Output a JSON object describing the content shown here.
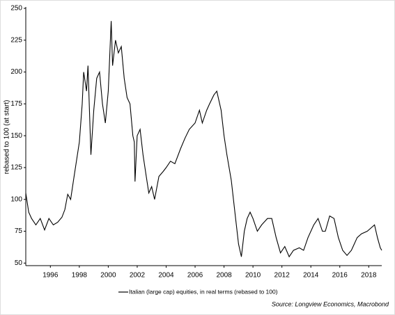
{
  "chart_data": {
    "type": "line",
    "y_label": "rebased to 100 (at start)",
    "source": "Source: Longview Economics, Macrobond",
    "x": [
      1994.3,
      1994.5,
      1994.7,
      1995.0,
      1995.3,
      1995.6,
      1995.9,
      1996.2,
      1996.5,
      1996.8,
      1997.0,
      1997.2,
      1997.4,
      1997.6,
      1997.8,
      1998.0,
      1998.2,
      1998.3,
      1998.5,
      1998.6,
      1998.7,
      1998.8,
      1999.0,
      1999.2,
      1999.4,
      1999.6,
      1999.8,
      2000.0,
      2000.2,
      2000.3,
      2000.5,
      2000.7,
      2000.9,
      2001.1,
      2001.3,
      2001.5,
      2001.7,
      2001.8,
      2001.85,
      2002.0,
      2002.2,
      2002.4,
      2002.6,
      2002.8,
      2003.0,
      2003.2,
      2003.5,
      2003.8,
      2004.0,
      2004.3,
      2004.6,
      2005.0,
      2005.3,
      2005.6,
      2006.0,
      2006.3,
      2006.5,
      2006.8,
      2007.0,
      2007.3,
      2007.5,
      2007.8,
      2008.0,
      2008.2,
      2008.5,
      2008.8,
      2009.0,
      2009.2,
      2009.4,
      2009.6,
      2009.8,
      2010.0,
      2010.3,
      2010.6,
      2011.0,
      2011.3,
      2011.6,
      2011.9,
      2012.2,
      2012.5,
      2012.8,
      2013.2,
      2013.5,
      2013.8,
      2014.2,
      2014.5,
      2014.8,
      2015.0,
      2015.3,
      2015.6,
      2015.9,
      2016.2,
      2016.5,
      2016.8,
      2017.2,
      2017.5,
      2017.9,
      2018.2,
      2018.4,
      2018.6,
      2018.8,
      2018.9
    ],
    "series": [
      {
        "name": "Italian (large cap) equities, in real terms (rebased to 100)",
        "color": "#000000",
        "values": [
          105,
          90,
          85,
          80,
          85,
          76,
          85,
          80,
          82,
          86,
          92,
          104,
          100,
          115,
          130,
          145,
          175,
          200,
          185,
          205,
          170,
          135,
          170,
          195,
          200,
          175,
          160,
          185,
          240,
          205,
          225,
          215,
          220,
          195,
          180,
          175,
          150,
          145,
          114,
          150,
          155,
          135,
          120,
          105,
          110,
          100,
          118,
          122,
          125,
          130,
          128,
          140,
          148,
          155,
          160,
          170,
          160,
          170,
          175,
          182,
          185,
          170,
          150,
          135,
          115,
          85,
          65,
          55,
          75,
          85,
          90,
          85,
          75,
          80,
          85,
          85,
          70,
          58,
          63,
          55,
          60,
          62,
          60,
          70,
          80,
          85,
          75,
          75,
          87,
          85,
          70,
          60,
          56,
          60,
          70,
          73,
          75,
          78,
          80,
          70,
          62,
          60
        ]
      }
    ],
    "xlim": [
      1994.3,
      2018.9
    ],
    "ylim": [
      48,
      250
    ],
    "xticks": [
      1996,
      1998,
      2000,
      2002,
      2004,
      2006,
      2008,
      2010,
      2012,
      2014,
      2016,
      2018
    ],
    "yticks": [
      50,
      75,
      100,
      125,
      150,
      175,
      200,
      225,
      250
    ]
  }
}
